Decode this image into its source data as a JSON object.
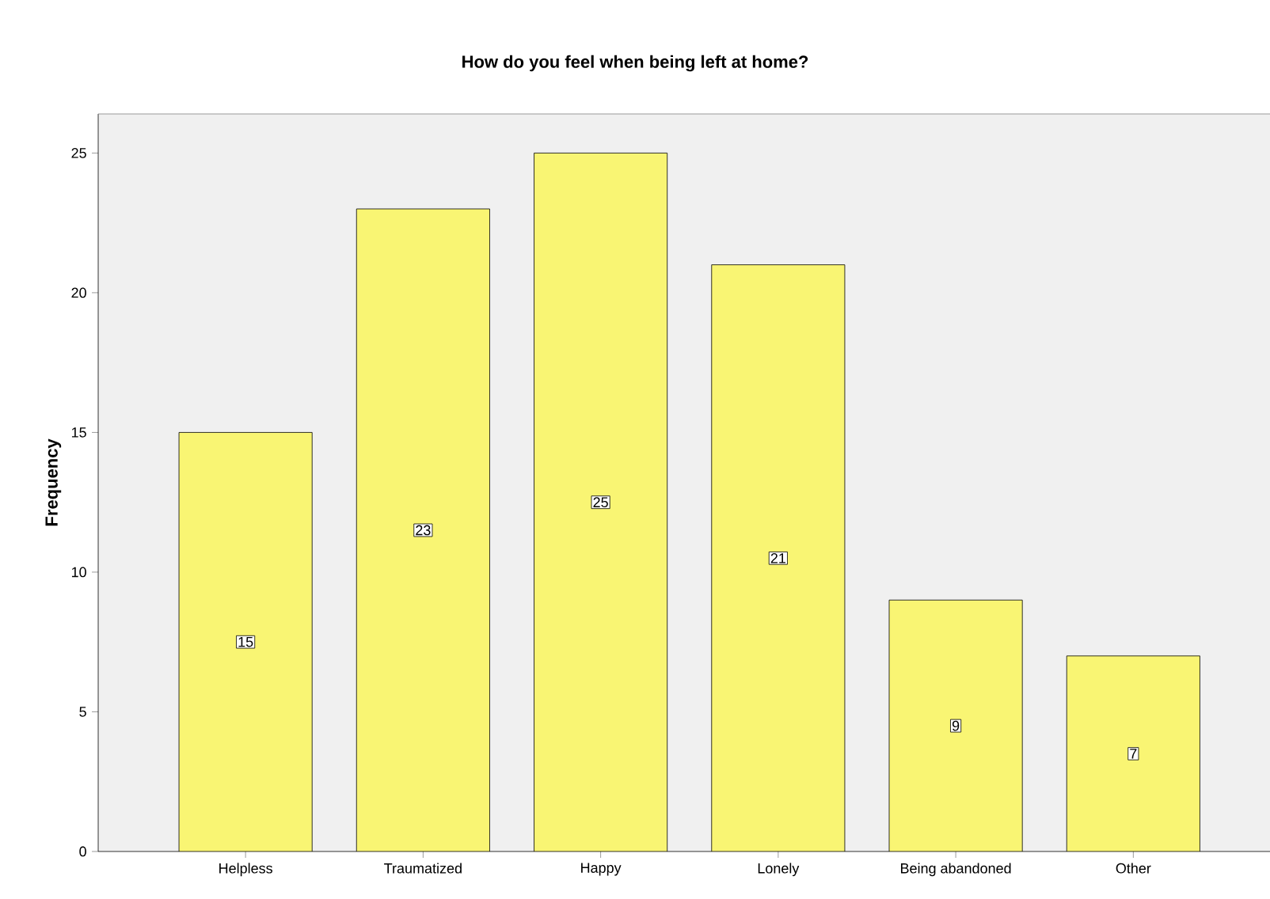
{
  "chart_data": {
    "type": "bar",
    "title": "How do you feel when being left at home?",
    "ylabel": "Frequency",
    "categories": [
      "Helpless",
      "Traumatized",
      "Happy",
      "Lonely",
      "Being abandoned",
      "Other"
    ],
    "values": [
      15,
      23,
      25,
      21,
      9,
      7
    ],
    "color": "#f9f573",
    "ylim": [
      0,
      26.4
    ],
    "yticks": [
      0,
      5,
      10,
      15,
      20,
      25
    ],
    "data_labels": true
  }
}
